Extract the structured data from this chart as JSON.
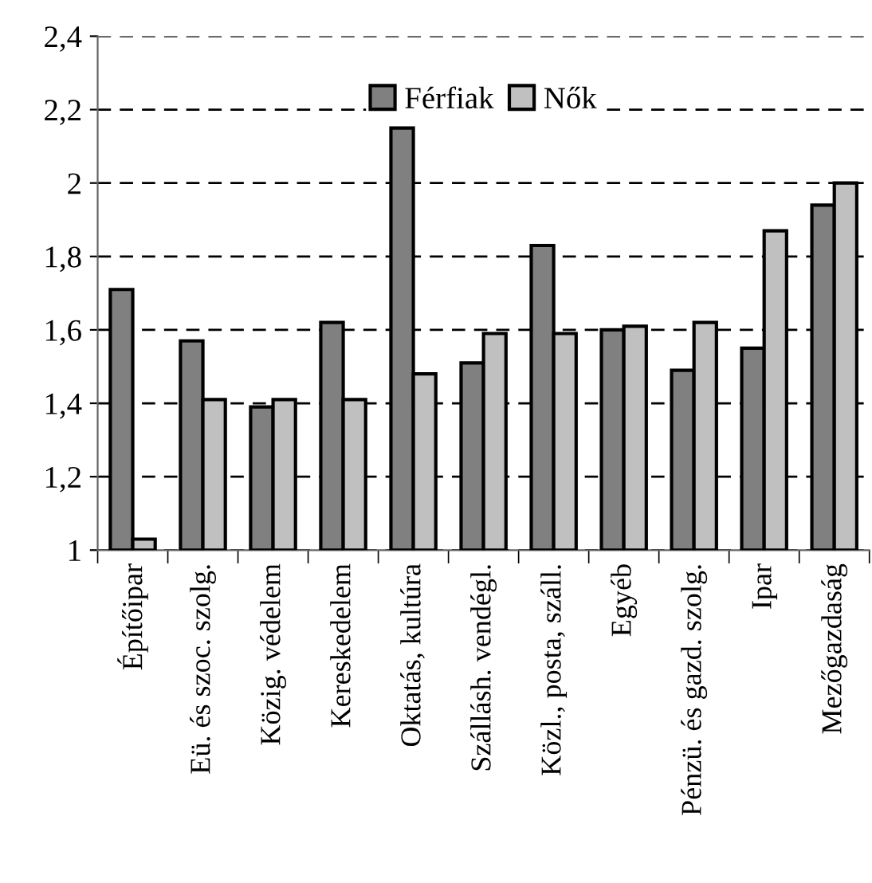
{
  "chart_data": {
    "type": "bar",
    "categories": [
      "Építőipar",
      "Eü. és szoc. szolg.",
      "Közig. védelem",
      "Kereskedelem",
      "Oktatás, kultúra",
      "Szállásh. vendégl.",
      "Közl., posta, száll.",
      "Egyéb",
      "Pénzü. és gazd. szolg.",
      "Ipar",
      "Mezőgazdaság"
    ],
    "series": [
      {
        "name": "Férfiak",
        "color": "#808080",
        "values": [
          1.71,
          1.57,
          1.39,
          1.62,
          2.15,
          1.51,
          1.83,
          1.6,
          1.49,
          1.55,
          1.94
        ]
      },
      {
        "name": "Nők",
        "color": "#c0c0c0",
        "values": [
          1.03,
          1.41,
          1.41,
          1.41,
          1.48,
          1.59,
          1.59,
          1.61,
          1.62,
          1.87,
          2.0
        ]
      }
    ],
    "ylim": [
      1,
      2.4
    ],
    "yticks": [
      {
        "value": 1,
        "label": "1"
      },
      {
        "value": 1.2,
        "label": "1,2"
      },
      {
        "value": 1.4,
        "label": "1,4"
      },
      {
        "value": 1.6,
        "label": "1,6"
      },
      {
        "value": 1.8,
        "label": "1,8"
      },
      {
        "value": 2,
        "label": "2"
      },
      {
        "value": 2.2,
        "label": "2,2"
      },
      {
        "value": 2.4,
        "label": "2,4"
      }
    ],
    "grid": "y",
    "legend": "top"
  }
}
